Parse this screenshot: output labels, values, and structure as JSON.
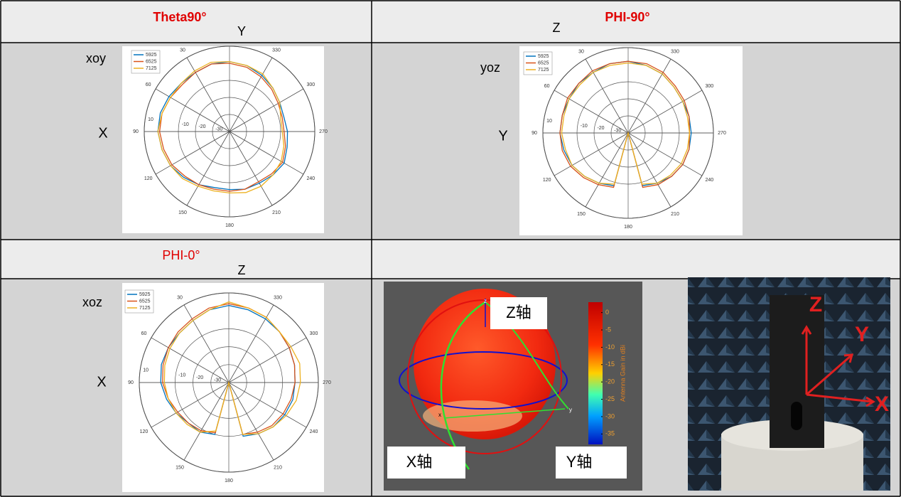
{
  "table": {
    "headers": [
      {
        "title": "Theta90°",
        "axis": "Y"
      },
      {
        "title": "PHI-90°",
        "axis": "Z"
      },
      {
        "title": "PHI-0°",
        "axis": "Z"
      }
    ],
    "rows": [
      {
        "plane": "xoy",
        "axis": "X"
      },
      {
        "plane": "yoz",
        "axis": "Y"
      },
      {
        "plane": "xoz",
        "axis": "X"
      }
    ]
  },
  "figure3d": {
    "labels": [
      "Z轴",
      "X轴",
      "Y轴"
    ],
    "axes": [
      "z",
      "y",
      "x"
    ]
  },
  "photo": {
    "axes": [
      "Z",
      "Y",
      "X"
    ]
  },
  "chart_data": [
    {
      "type": "polar",
      "rlim": [
        -40,
        10
      ],
      "rticks": [
        -30,
        -20,
        -10,
        10
      ],
      "thetaticks": [
        30,
        60,
        90,
        120,
        150,
        180,
        210,
        240,
        270,
        300,
        330
      ],
      "theta": [
        0,
        15,
        30,
        45,
        60,
        75,
        90,
        105,
        120,
        135,
        150,
        165,
        180,
        195,
        210,
        225,
        240,
        255,
        270,
        285,
        300,
        315,
        330,
        345
      ],
      "series": [
        {
          "name": "5925",
          "color": "#0072bd",
          "values": [
            1,
            1,
            0,
            0,
            1,
            2,
            2,
            1,
            0,
            -2,
            -4,
            -6,
            -6,
            -5,
            -5,
            -4,
            -3,
            -5,
            -6,
            -7,
            -6,
            -4,
            -2,
            0
          ]
        },
        {
          "name": "6525",
          "color": "#d95319",
          "values": [
            0,
            1,
            0,
            -1,
            0,
            1,
            1,
            0,
            -1,
            -3,
            -4,
            -5,
            -5,
            -5,
            -6,
            -5,
            -4,
            -6,
            -8,
            -8,
            -7,
            -5,
            -3,
            -1
          ]
        },
        {
          "name": "7125",
          "color": "#edb120",
          "values": [
            1,
            2,
            1,
            0,
            0,
            1,
            2,
            1,
            0,
            -1,
            -3,
            -4,
            -4,
            -3,
            -3,
            -4,
            -5,
            -7,
            -9,
            -9,
            -6,
            -4,
            -1,
            0
          ]
        }
      ]
    },
    {
      "type": "polar",
      "rlim": [
        -40,
        10
      ],
      "rticks": [
        -30,
        -20,
        -10,
        10
      ],
      "thetaticks": [
        30,
        60,
        90,
        120,
        150,
        180,
        210,
        240,
        270,
        300,
        330
      ],
      "theta": [
        0,
        15,
        30,
        45,
        60,
        75,
        90,
        105,
        120,
        135,
        150,
        165,
        180,
        195,
        210,
        225,
        240,
        255,
        270,
        285,
        300,
        315,
        330,
        345
      ],
      "series": [
        {
          "name": "5925",
          "color": "#0072bd",
          "values": [
            2,
            2,
            1,
            1,
            0,
            0,
            0,
            -1,
            -2,
            -4,
            -6,
            -8,
            -40,
            -8,
            -6,
            -4,
            -3,
            -3,
            -3,
            -3,
            -3,
            -2,
            0,
            1
          ]
        },
        {
          "name": "6525",
          "color": "#d95319",
          "values": [
            2,
            2,
            2,
            1,
            1,
            0,
            0,
            0,
            -1,
            -3,
            -5,
            -7,
            -40,
            -7,
            -5,
            -4,
            -3,
            -3,
            -4,
            -3,
            -2,
            -1,
            1,
            2
          ]
        },
        {
          "name": "7125",
          "color": "#edb120",
          "values": [
            1,
            1,
            1,
            0,
            0,
            -1,
            -1,
            -2,
            -2,
            -4,
            -6,
            -9,
            -40,
            -9,
            -6,
            -5,
            -4,
            -4,
            -4,
            -4,
            -3,
            -2,
            0,
            1
          ]
        }
      ]
    },
    {
      "type": "polar",
      "rlim": [
        -40,
        10
      ],
      "rticks": [
        -30,
        -20,
        -10,
        10
      ],
      "thetaticks": [
        30,
        60,
        90,
        120,
        150,
        180,
        210,
        240,
        270,
        300,
        330
      ],
      "theta": [
        0,
        15,
        30,
        45,
        60,
        75,
        90,
        105,
        120,
        135,
        150,
        165,
        180,
        195,
        210,
        225,
        240,
        255,
        270,
        285,
        300,
        315,
        330,
        345
      ],
      "series": [
        {
          "name": "5925",
          "color": "#0072bd",
          "values": [
            3,
            2,
            0,
            -1,
            -1,
            -1,
            -2,
            -4,
            -6,
            -8,
            -8,
            -10,
            -40,
            -9,
            -7,
            -5,
            -4,
            -3,
            -3,
            -2,
            -1,
            0,
            1,
            2
          ]
        },
        {
          "name": "6525",
          "color": "#d95319",
          "values": [
            4,
            3,
            1,
            0,
            -1,
            -2,
            -3,
            -5,
            -7,
            -8,
            -9,
            -11,
            -40,
            -10,
            -8,
            -6,
            -5,
            -4,
            -3,
            -2,
            -1,
            0,
            2,
            3
          ]
        },
        {
          "name": "7125",
          "color": "#edb120",
          "values": [
            5,
            2,
            0,
            -1,
            -2,
            -3,
            -4,
            -5,
            -6,
            -7,
            -8,
            -12,
            -40,
            -10,
            -7,
            -5,
            -3,
            -1,
            0,
            1,
            0,
            0,
            2,
            3
          ]
        }
      ]
    },
    {
      "type": "colorbar",
      "label": "Antenna Gain in dBi",
      "ylim": [
        -38,
        3
      ],
      "yticks": [
        0,
        -5,
        -10,
        -15,
        -20,
        -25,
        -30,
        -35
      ]
    }
  ]
}
